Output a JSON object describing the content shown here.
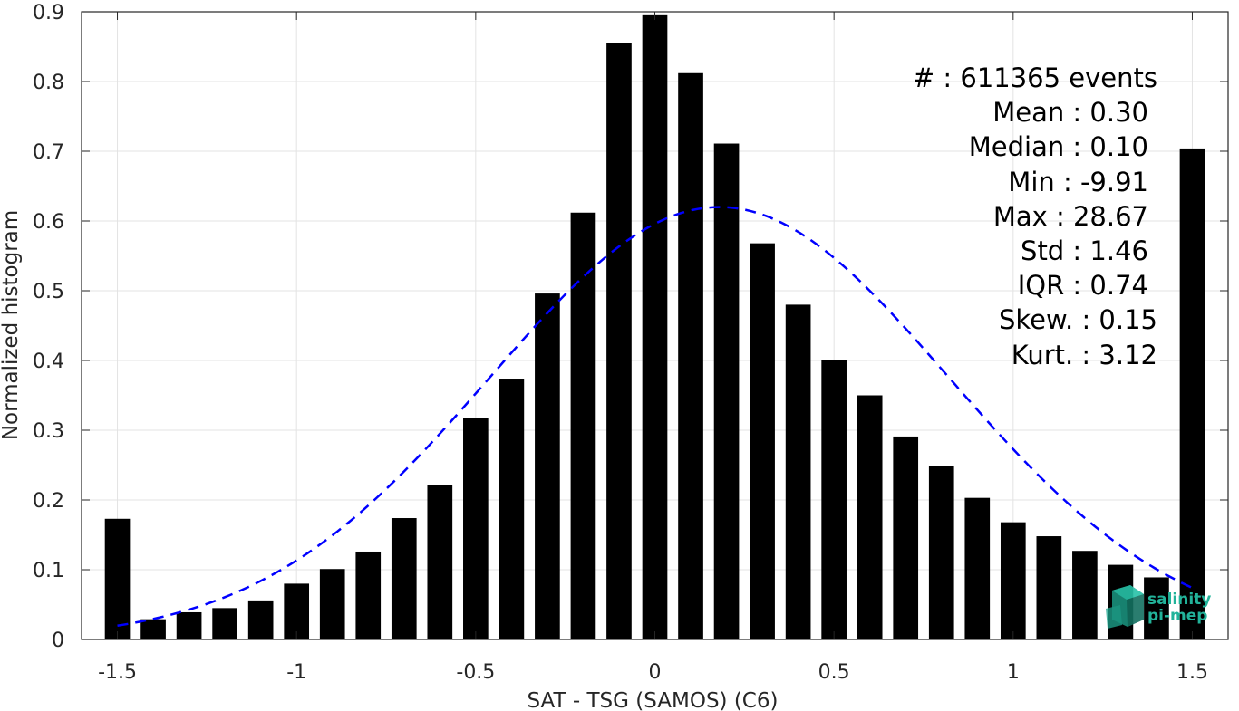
{
  "chart_data": {
    "type": "bar",
    "xlabel": "SAT - TSG (SAMOS) (C6)",
    "ylabel": "Normalized histogram",
    "xlim": [
      -1.6,
      1.6
    ],
    "ylim": [
      0,
      0.9
    ],
    "xticks": [
      -1.5,
      -1,
      -0.5,
      0,
      0.5,
      1,
      1.5
    ],
    "xtick_labels": [
      "-1.5",
      "-1",
      "-0.5",
      "0",
      "0.5",
      "1",
      "1.5"
    ],
    "yticks": [
      0,
      0.1,
      0.2,
      0.3,
      0.4,
      0.5,
      0.6,
      0.7,
      0.8,
      0.9
    ],
    "ytick_labels": [
      "0",
      "0.1",
      "0.2",
      "0.3",
      "0.4",
      "0.5",
      "0.6",
      "0.7",
      "0.8",
      "0.9"
    ],
    "grid": true,
    "bar_color": "#000000",
    "fit_color": "#0000ff",
    "bars": {
      "x": [
        -1.5,
        -1.4,
        -1.3,
        -1.2,
        -1.1,
        -1.0,
        -0.9,
        -0.8,
        -0.7,
        -0.6,
        -0.5,
        -0.4,
        -0.3,
        -0.2,
        -0.1,
        0.0,
        0.1,
        0.2,
        0.3,
        0.4,
        0.5,
        0.6,
        0.7,
        0.8,
        0.9,
        1.0,
        1.1,
        1.2,
        1.3,
        1.4,
        1.5
      ],
      "values": [
        0.173,
        0.029,
        0.039,
        0.045,
        0.056,
        0.08,
        0.101,
        0.126,
        0.174,
        0.222,
        0.317,
        0.374,
        0.496,
        0.612,
        0.855,
        0.895,
        0.812,
        0.711,
        0.568,
        0.48,
        0.401,
        0.35,
        0.291,
        0.249,
        0.203,
        0.168,
        0.148,
        0.127,
        0.107,
        0.089,
        0.704
      ],
      "width": 0.07
    },
    "fit_curve": {
      "style": "dashed",
      "type": "gaussian",
      "x_range": [
        -1.5,
        1.5
      ],
      "peak": 0.62,
      "center": 0.18,
      "sigma": 0.64
    },
    "stats": [
      "#  : 611365 events",
      "Mean : 0.30",
      "Median : 0.10",
      "Min : -9.91",
      "Max : 28.67",
      "Std : 1.46",
      "IQR : 0.74",
      "Skew. : 0.15",
      "Kurt. : 3.12"
    ]
  },
  "logo": {
    "line1": "salinity",
    "line2": "pi-mep",
    "color": "#22b39a"
  }
}
